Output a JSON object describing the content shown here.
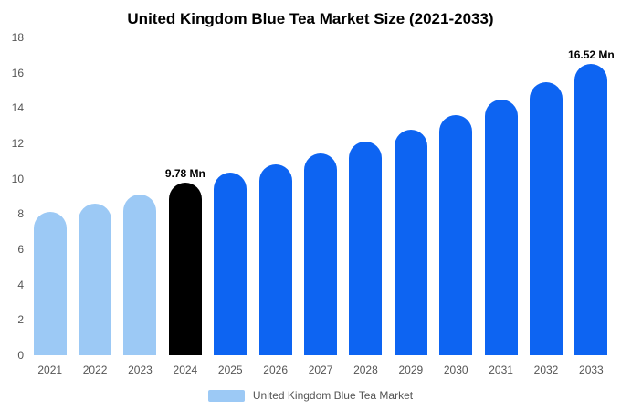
{
  "title": "United Kingdom Blue Tea Market Size (2021-2033)",
  "legend": {
    "label": "United Kingdom Blue Tea Market",
    "swatch_color": "#9CC9F5"
  },
  "colors": {
    "light_blue": "#9CC9F5",
    "primary_blue": "#0D64F2",
    "highlight_black": "#000000",
    "axis_text": "#555555"
  },
  "chart_data": {
    "type": "bar",
    "title": "United Kingdom Blue Tea Market Size (2021-2033)",
    "categories": [
      "2021",
      "2022",
      "2023",
      "2024",
      "2025",
      "2026",
      "2027",
      "2028",
      "2029",
      "2030",
      "2031",
      "2032",
      "2033"
    ],
    "values": [
      8.1,
      8.6,
      9.1,
      9.78,
      10.35,
      10.8,
      11.45,
      12.1,
      12.8,
      13.6,
      14.5,
      15.45,
      16.52
    ],
    "bar_color_keys": [
      "light_blue",
      "light_blue",
      "light_blue",
      "highlight_black",
      "primary_blue",
      "primary_blue",
      "primary_blue",
      "primary_blue",
      "primary_blue",
      "primary_blue",
      "primary_blue",
      "primary_blue",
      "primary_blue"
    ],
    "data_labels": [
      "",
      "",
      "",
      "9.78 Mn",
      "",
      "",
      "",
      "",
      "",
      "",
      "",
      "",
      "16.52 Mn"
    ],
    "xlabel": "",
    "ylabel": "",
    "ylim": [
      0,
      18
    ],
    "yticks": [
      0,
      2,
      4,
      6,
      8,
      10,
      12,
      14,
      16,
      18
    ],
    "grid": false,
    "legend_position": "bottom",
    "unit": "Mn"
  }
}
